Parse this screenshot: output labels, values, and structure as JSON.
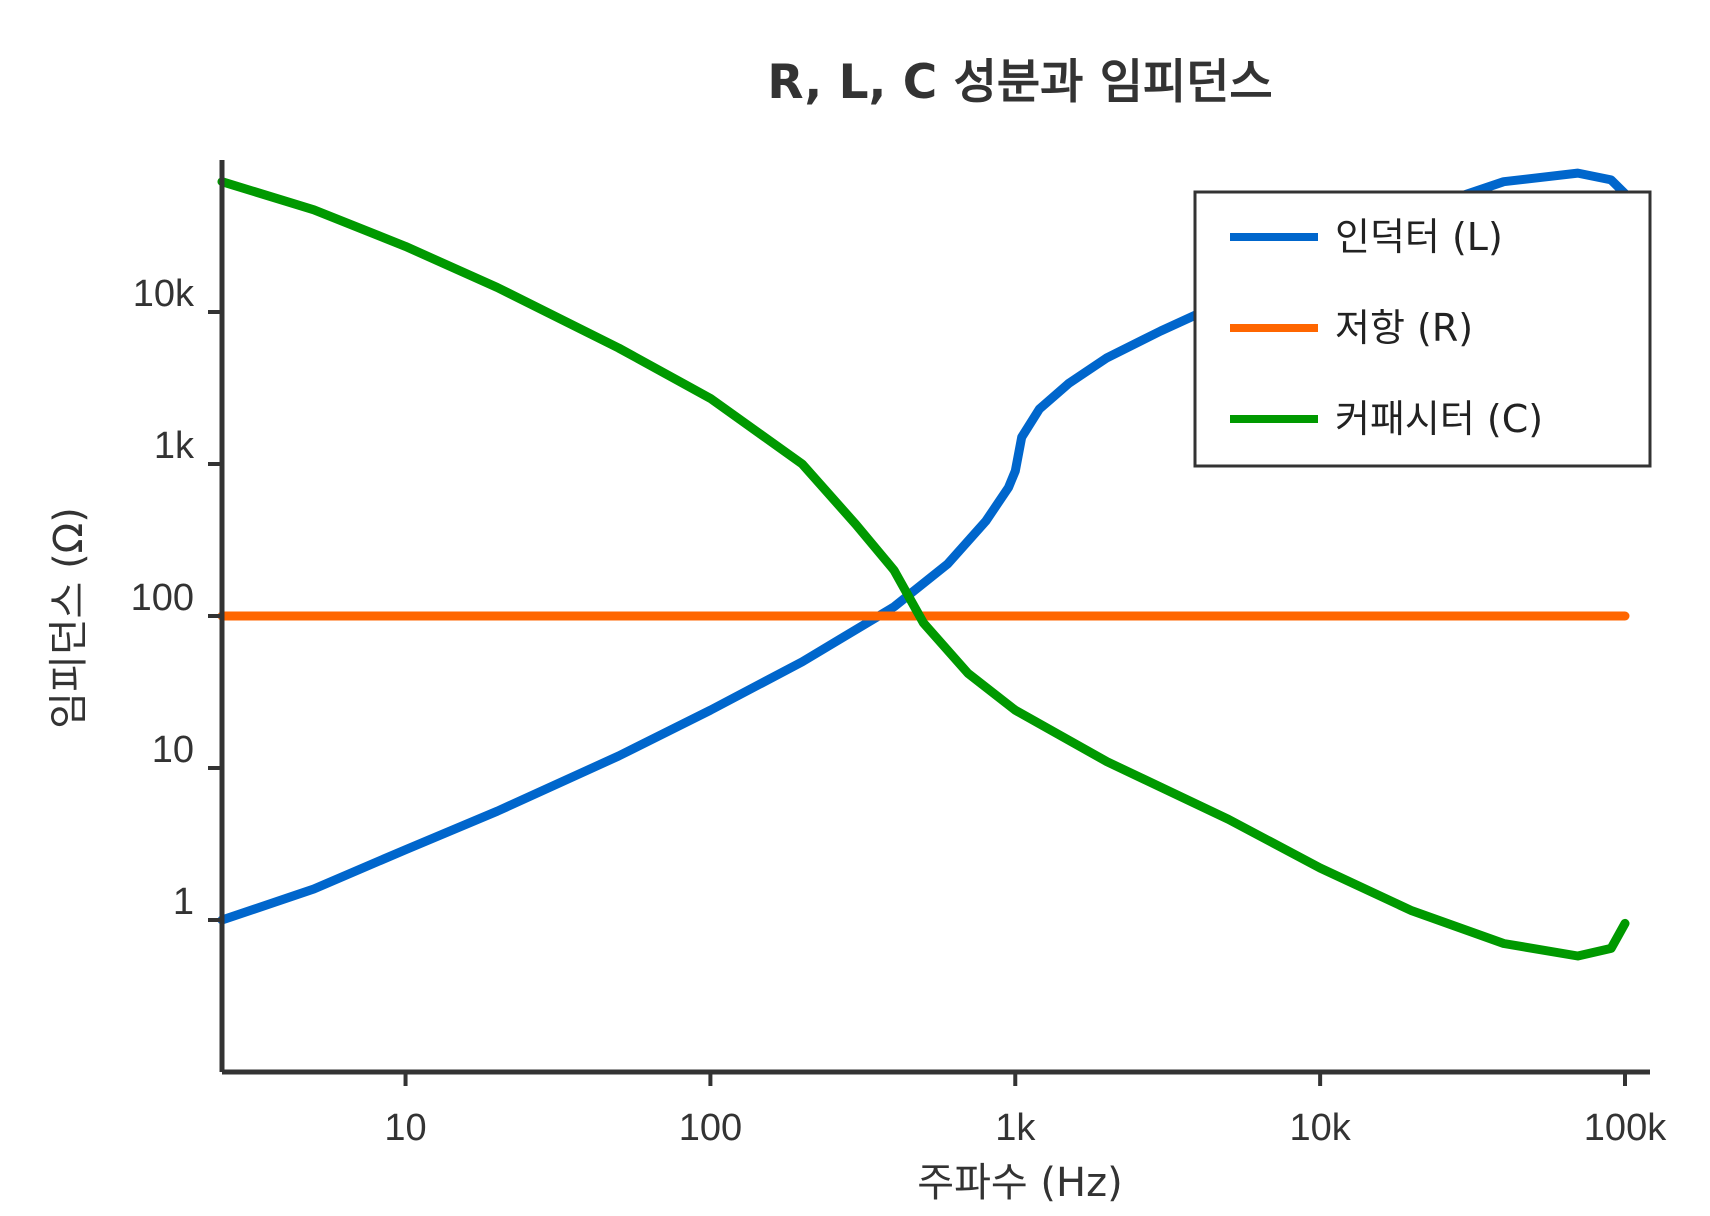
{
  "chart_data": {
    "type": "line",
    "title": "R, L, C 성분과 임피던스",
    "xlabel": "주파수 (Hz)",
    "ylabel": "임피던스 (Ω)",
    "x_scale": "log",
    "y_scale": "log",
    "xlim": [
      2.5,
      100000
    ],
    "ylim": [
      0.1,
      100000
    ],
    "x_ticks": [
      {
        "value": 10,
        "label": "10"
      },
      {
        "value": 100,
        "label": "100"
      },
      {
        "value": 1000,
        "label": "1k"
      },
      {
        "value": 10000,
        "label": "10k"
      },
      {
        "value": 100000,
        "label": "100k"
      }
    ],
    "y_ticks": [
      {
        "value": 1,
        "label": "1"
      },
      {
        "value": 10,
        "label": "10"
      },
      {
        "value": 100,
        "label": "100"
      },
      {
        "value": 1000,
        "label": "1k"
      },
      {
        "value": 10000,
        "label": "10k"
      }
    ],
    "grid": false,
    "legend_position": "top-right",
    "series": [
      {
        "name": "인덕터 (L)",
        "color": "#0066cc",
        "points": [
          [
            2.5,
            1.0
          ],
          [
            5,
            1.6
          ],
          [
            10,
            2.9
          ],
          [
            20,
            5.2
          ],
          [
            50,
            12
          ],
          [
            100,
            24
          ],
          [
            200,
            50
          ],
          [
            400,
            115
          ],
          [
            600,
            220
          ],
          [
            800,
            420
          ],
          [
            950,
            700
          ],
          [
            1000,
            900
          ],
          [
            1050,
            1500
          ],
          [
            1200,
            2300
          ],
          [
            1500,
            3400
          ],
          [
            2000,
            5000
          ],
          [
            3000,
            7500
          ],
          [
            5000,
            12000
          ],
          [
            10000,
            23000
          ],
          [
            20000,
            45000
          ],
          [
            40000,
            72000
          ],
          [
            70000,
            82000
          ],
          [
            90000,
            74000
          ],
          [
            100000,
            60000
          ]
        ]
      },
      {
        "name": "저항 (R)",
        "color": "#ff6600",
        "points": [
          [
            2.5,
            100
          ],
          [
            100000,
            100
          ]
        ]
      },
      {
        "name": "커패시터 (C)",
        "color": "#009900",
        "points": [
          [
            2.5,
            72000
          ],
          [
            5,
            47000
          ],
          [
            10,
            27000
          ],
          [
            20,
            14500
          ],
          [
            50,
            5800
          ],
          [
            100,
            2700
          ],
          [
            200,
            1000
          ],
          [
            300,
            400
          ],
          [
            400,
            200
          ],
          [
            500,
            90
          ],
          [
            700,
            42
          ],
          [
            1000,
            24
          ],
          [
            2000,
            11
          ],
          [
            5000,
            4.6
          ],
          [
            10000,
            2.2
          ],
          [
            20000,
            1.15
          ],
          [
            40000,
            0.7
          ],
          [
            70000,
            0.58
          ],
          [
            90000,
            0.65
          ],
          [
            100000,
            0.95
          ]
        ]
      }
    ]
  }
}
